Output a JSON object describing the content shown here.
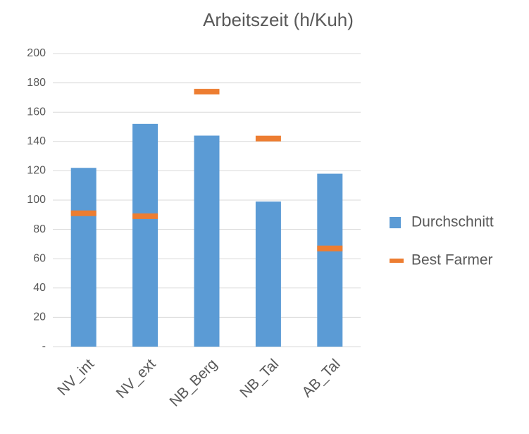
{
  "chart_data": {
    "type": "bar",
    "title": "Arbeitszeit (h/Kuh)",
    "categories": [
      "NV_int",
      "NV_ext",
      "NB_Berg",
      "NB_Tal",
      "AB_Tal"
    ],
    "series": [
      {
        "name": "Durchschnitt",
        "color": "#5b9bd5",
        "kind": "bar",
        "values": [
          122,
          152,
          144,
          99,
          118
        ]
      },
      {
        "name": "Best Farmer",
        "color": "#ed7d31",
        "kind": "dash",
        "values": [
          91,
          89,
          174,
          142,
          67
        ]
      }
    ],
    "ylim": [
      0,
      200
    ],
    "yticks": [
      {
        "value": 0,
        "label": "-"
      },
      20,
      40,
      60,
      80,
      100,
      120,
      140,
      160,
      180,
      200
    ],
    "grid": true,
    "legend": "right"
  }
}
